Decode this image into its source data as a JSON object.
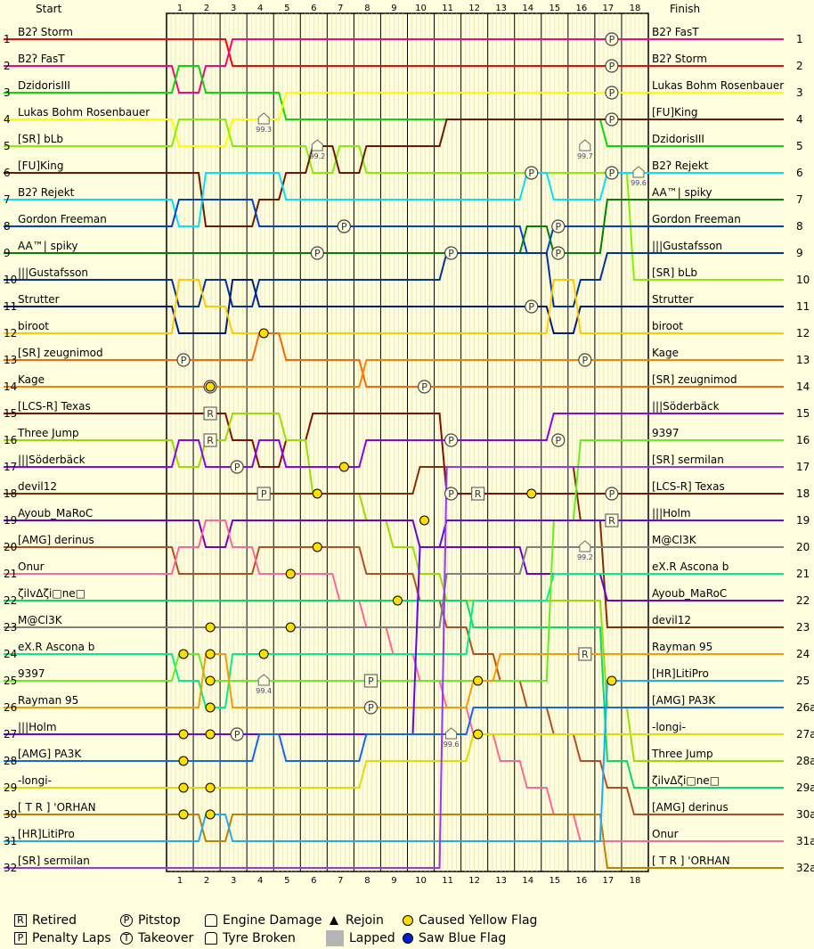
{
  "headers": {
    "start": "Start",
    "finish": "Finish"
  },
  "laps": [
    "1",
    "2",
    "3",
    "4",
    "5",
    "6",
    "7",
    "8",
    "9",
    "10",
    "11",
    "12",
    "13",
    "14",
    "15",
    "16",
    "17",
    "18"
  ],
  "start_grid": [
    "B2ʔ Storm",
    "B2ʔ FasT",
    "DzidorisIII",
    "Lukas Bohm Rosenbauer",
    "[SR] bLb",
    "[FU]King",
    "B2ʔ Rejekt",
    "Gordon Freeman",
    "AA™| spiky",
    "|||Gustafsson",
    "Strutter",
    "biroot",
    "[SR] zeugnimod",
    "Kage",
    "[LCS-R] Texas",
    "Three Jump",
    "|||Söderbäck",
    "devil12",
    "Ayoub_MaRoC",
    "[AMG] derinus",
    "Onur",
    "ζilvΔζi□ne□",
    "M@Cl3K",
    "eX.R Ascona b",
    "9397",
    "Rayman 95",
    "|||Holm",
    "[AMG] PA3K",
    "-longi-",
    "[ T R ] 'ORHAN",
    "[HR]LitiPro",
    "[SR] sermilan"
  ],
  "start_positions": [
    "1",
    "2",
    "3",
    "4",
    "5",
    "6",
    "7",
    "8",
    "9",
    "10",
    "11",
    "12",
    "13",
    "14",
    "15",
    "16",
    "17",
    "18",
    "19",
    "20",
    "21",
    "22",
    "23",
    "24",
    "25",
    "26",
    "27",
    "28",
    "29",
    "30",
    "31",
    "32"
  ],
  "finish_order": [
    "B2ʔ FasT",
    "B2ʔ Storm",
    "Lukas Bohm Rosenbauer",
    "[FU]King",
    "DzidorisIII",
    "B2ʔ Rejekt",
    "AA™| spiky",
    "Gordon Freeman",
    "|||Gustafsson",
    "[SR] bLb",
    "Strutter",
    "biroot",
    "Kage",
    "[SR] zeugnimod",
    "|||Söderbäck",
    "9397",
    "[SR] sermilan",
    "[LCS-R] Texas",
    "|||Holm",
    "M@Cl3K",
    "eX.R Ascona b",
    "Ayoub_MaRoC",
    "devil12",
    "Rayman 95",
    "[HR]LitiPro",
    "[AMG] PA3K",
    "-longi-",
    "Three Jump",
    "ζilvΔζi□ne□",
    "[AMG] derinus",
    "Onur",
    "[ T R ] 'ORHAN"
  ],
  "finish_positions": [
    "1",
    "2",
    "3",
    "4",
    "5",
    "6",
    "7",
    "8",
    "9",
    "10",
    "11",
    "12",
    "13",
    "14",
    "15",
    "16",
    "17",
    "18",
    "19",
    "20",
    "21",
    "22",
    "23",
    "24",
    "25",
    "26a",
    "27a",
    "28a",
    "29a",
    "30a",
    "31a",
    "32a"
  ],
  "colors": [
    "#ff0000",
    "#ff0080",
    "#00dd00",
    "#ffff00",
    "#88ee00",
    "#6b1a00",
    "#00e0ff",
    "#0040d0",
    "#008000",
    "#003399",
    "#001a80",
    "#ffcc00",
    "#ff6600",
    "#ff8000",
    "#801000",
    "#99dd00",
    "#8800ff",
    "#803000",
    "#7000cc",
    "#b05020",
    "#ff6699",
    "#00e060",
    "#808080",
    "#00ee88",
    "#66ee22",
    "#ff9900",
    "#6600ff",
    "#1066ff",
    "#dddd00",
    "#c08000",
    "#20aaff",
    "#9933ff"
  ],
  "chart_data": {
    "type": "line",
    "title": "",
    "x": [
      "Start",
      "1",
      "2",
      "3",
      "4",
      "5",
      "6",
      "7",
      "8",
      "9",
      "10",
      "11",
      "12",
      "13",
      "14",
      "15",
      "16",
      "17",
      "18"
    ],
    "y_axis": "position (1 at top)",
    "series": [
      {
        "name": "B2ʔ Storm",
        "positions": [
          1,
          1,
          1,
          2,
          2,
          2,
          2,
          2,
          2,
          2,
          2,
          2,
          2,
          2,
          2,
          2,
          2,
          2,
          2
        ]
      },
      {
        "name": "B2ʔ FasT",
        "positions": [
          2,
          3,
          2,
          1,
          1,
          1,
          1,
          1,
          1,
          1,
          1,
          1,
          1,
          1,
          1,
          1,
          1,
          1,
          1
        ]
      },
      {
        "name": "DzidorisIII",
        "positions": [
          3,
          2,
          3,
          3,
          3,
          4,
          4,
          4,
          4,
          4,
          4,
          4,
          4,
          4,
          4,
          4,
          4,
          5,
          5
        ]
      },
      {
        "name": "Lukas Bohm Rosenbauer",
        "positions": [
          4,
          5,
          5,
          4,
          4,
          3,
          3,
          3,
          3,
          3,
          3,
          3,
          3,
          3,
          3,
          3,
          3,
          3,
          3
        ]
      },
      {
        "name": "[SR] bLb",
        "positions": [
          5,
          4,
          4,
          5,
          5,
          5,
          6,
          5,
          6,
          6,
          6,
          6,
          6,
          6,
          6,
          6,
          6,
          6,
          10
        ]
      },
      {
        "name": "[FU]King",
        "positions": [
          6,
          6,
          8,
          8,
          7,
          6,
          5,
          6,
          5,
          5,
          5,
          4,
          4,
          4,
          4,
          4,
          4,
          4,
          4
        ]
      },
      {
        "name": "B2ʔ Rejekt",
        "positions": [
          7,
          8,
          6,
          6,
          6,
          7,
          7,
          7,
          7,
          7,
          7,
          7,
          7,
          7,
          6,
          7,
          7,
          6,
          6
        ]
      },
      {
        "name": "Gordon Freeman",
        "positions": [
          8,
          7,
          7,
          7,
          8,
          8,
          8,
          8,
          8,
          8,
          8,
          8,
          8,
          8,
          9,
          8,
          8,
          8,
          8
        ]
      },
      {
        "name": "AA™| spiky",
        "positions": [
          9,
          9,
          9,
          9,
          9,
          9,
          9,
          9,
          9,
          9,
          9,
          9,
          9,
          9,
          8,
          9,
          9,
          7,
          7
        ]
      },
      {
        "name": "|||Gustafsson",
        "positions": [
          10,
          11,
          10,
          11,
          10,
          10,
          10,
          10,
          10,
          10,
          10,
          9,
          9,
          9,
          9,
          11,
          10,
          9,
          9
        ]
      },
      {
        "name": "Strutter",
        "positions": [
          11,
          12,
          12,
          10,
          11,
          11,
          11,
          11,
          11,
          11,
          11,
          11,
          11,
          11,
          11,
          12,
          11,
          11,
          11
        ]
      },
      {
        "name": "biroot",
        "positions": [
          12,
          10,
          11,
          12,
          12,
          12,
          12,
          12,
          12,
          12,
          12,
          12,
          12,
          12,
          12,
          10,
          12,
          12,
          12
        ]
      },
      {
        "name": "[SR] zeugnimod",
        "positions": [
          13,
          13,
          13,
          13,
          12,
          13,
          13,
          13,
          14,
          14,
          14,
          14,
          14,
          14,
          14,
          14,
          14,
          14,
          14
        ]
      },
      {
        "name": "Kage",
        "positions": [
          14,
          14,
          14,
          14,
          14,
          14,
          14,
          14,
          13,
          13,
          13,
          13,
          13,
          13,
          13,
          13,
          13,
          13,
          13
        ]
      },
      {
        "name": "[LCS-R] Texas",
        "positions": [
          15,
          15,
          15,
          16,
          17,
          16,
          15,
          15,
          15,
          15,
          15,
          18,
          18,
          18,
          18,
          18,
          18,
          18,
          18
        ]
      },
      {
        "name": "Three Jump",
        "positions": [
          16,
          17,
          16,
          15,
          15,
          16,
          18,
          18,
          19,
          20,
          21,
          22,
          22,
          22,
          22,
          22,
          22,
          26,
          28
        ]
      },
      {
        "name": "|||Söderbäck",
        "positions": [
          17,
          16,
          17,
          17,
          16,
          17,
          17,
          17,
          16,
          16,
          16,
          16,
          16,
          16,
          16,
          15,
          15,
          15,
          15
        ]
      },
      {
        "name": "devil12",
        "positions": [
          18,
          18,
          18,
          18,
          18,
          18,
          18,
          18,
          18,
          18,
          17,
          17,
          17,
          17,
          17,
          17,
          19,
          23,
          23
        ]
      },
      {
        "name": "Ayoub_MaRoC",
        "positions": [
          19,
          19,
          20,
          19,
          19,
          19,
          19,
          19,
          19,
          19,
          20,
          20,
          20,
          20,
          21,
          21,
          21,
          22,
          22
        ]
      },
      {
        "name": "[AMG] derinus",
        "positions": [
          20,
          21,
          21,
          21,
          20,
          20,
          20,
          20,
          21,
          21,
          22,
          23,
          24,
          25,
          26,
          27,
          28,
          29,
          30
        ]
      },
      {
        "name": "Onur",
        "positions": [
          21,
          20,
          19,
          20,
          21,
          21,
          21,
          22,
          23,
          24,
          25,
          26,
          27,
          28,
          29,
          30,
          31,
          31,
          31
        ]
      },
      {
        "name": "ζilvΔζi□ne□",
        "positions": [
          22,
          22,
          22,
          22,
          22,
          22,
          22,
          22,
          22,
          22,
          22,
          22,
          23,
          23,
          23,
          23,
          23,
          28,
          29
        ]
      },
      {
        "name": "M@Cl3K",
        "positions": [
          23,
          23,
          23,
          23,
          23,
          23,
          23,
          23,
          23,
          23,
          23,
          21,
          21,
          21,
          20,
          20,
          20,
          20,
          20
        ]
      },
      {
        "name": "eX.R Ascona b",
        "positions": [
          24,
          25,
          26,
          24,
          24,
          24,
          24,
          24,
          24,
          24,
          24,
          24,
          22,
          22,
          22,
          21,
          21,
          21,
          21
        ]
      },
      {
        "name": "9397",
        "positions": [
          25,
          24,
          25,
          25,
          25,
          25,
          25,
          25,
          25,
          25,
          25,
          25,
          25,
          25,
          25,
          19,
          16,
          16,
          16
        ]
      },
      {
        "name": "Rayman 95",
        "positions": [
          26,
          26,
          24,
          26,
          26,
          26,
          26,
          26,
          26,
          26,
          26,
          26,
          25,
          24,
          24,
          24,
          24,
          24,
          24
        ]
      },
      {
        "name": "|||Holm",
        "positions": [
          27,
          27,
          27,
          27,
          27,
          27,
          27,
          27,
          27,
          27,
          20,
          19,
          19,
          19,
          19,
          19,
          19,
          19,
          19
        ]
      },
      {
        "name": "[AMG] PA3K",
        "positions": [
          28,
          28,
          28,
          28,
          27,
          28,
          28,
          28,
          27,
          27,
          27,
          27,
          26,
          26,
          26,
          26,
          26,
          26,
          26
        ]
      },
      {
        "name": "-longi-",
        "positions": [
          29,
          29,
          29,
          29,
          29,
          29,
          29,
          29,
          28,
          28,
          28,
          28,
          27,
          27,
          27,
          27,
          27,
          27,
          27
        ]
      },
      {
        "name": "[ T R ] 'ORHAN",
        "positions": [
          30,
          30,
          31,
          30,
          30,
          30,
          30,
          30,
          30,
          30,
          30,
          30,
          30,
          30,
          30,
          30,
          30,
          32,
          32
        ]
      },
      {
        "name": "[HR]LitiPro",
        "positions": [
          31,
          31,
          30,
          31,
          31,
          31,
          31,
          31,
          31,
          31,
          31,
          31,
          31,
          31,
          31,
          31,
          31,
          25,
          25
        ]
      },
      {
        "name": "[SR] sermilan",
        "positions": [
          32,
          32,
          32,
          32,
          32,
          32,
          32,
          32,
          32,
          32,
          32,
          17,
          17,
          17,
          17,
          17,
          17,
          17,
          17
        ]
      }
    ],
    "events": [
      {
        "type": "pitstop",
        "lap": 17,
        "pos": 1
      },
      {
        "type": "pitstop",
        "lap": 17,
        "pos": 2
      },
      {
        "type": "pitstop",
        "lap": 17,
        "pos": 3
      },
      {
        "type": "pitstop",
        "lap": 17,
        "pos": 4
      },
      {
        "type": "pitstop",
        "lap": 14,
        "pos": 6
      },
      {
        "type": "pitstop",
        "lap": 17,
        "pos": 6
      },
      {
        "type": "pitstop",
        "lap": 7,
        "pos": 8
      },
      {
        "type": "pitstop",
        "lap": 6,
        "pos": 9
      },
      {
        "type": "pitstop",
        "lap": 11,
        "pos": 9
      },
      {
        "type": "pitstop",
        "lap": 15,
        "pos": 8
      },
      {
        "type": "pitstop",
        "lap": 15,
        "pos": 9
      },
      {
        "type": "pitstop",
        "lap": 14,
        "pos": 11
      },
      {
        "type": "pitstop",
        "lap": 1,
        "pos": 13
      },
      {
        "type": "pitstop",
        "lap": 16,
        "pos": 13
      },
      {
        "type": "pitstop",
        "lap": 10,
        "pos": 14
      },
      {
        "type": "pitstop",
        "lap": 2,
        "pos": 14
      },
      {
        "type": "pitstop",
        "lap": 11,
        "pos": 16
      },
      {
        "type": "pitstop",
        "lap": 15,
        "pos": 16
      },
      {
        "type": "pitstop",
        "lap": 3,
        "pos": 17
      },
      {
        "type": "pitstop",
        "lap": 11,
        "pos": 18
      },
      {
        "type": "pitstop",
        "lap": 17,
        "pos": 18
      },
      {
        "type": "pitstop",
        "lap": 3,
        "pos": 27
      },
      {
        "type": "pitstop",
        "lap": 8,
        "pos": 26
      },
      {
        "type": "pitstop",
        "lap": 7,
        "pos": 8
      },
      {
        "type": "penalty",
        "lap": 4,
        "pos": 18
      },
      {
        "type": "penalty",
        "lap": 8,
        "pos": 25
      },
      {
        "type": "retired",
        "lap": 2,
        "pos": 15
      },
      {
        "type": "retired",
        "lap": 2,
        "pos": 16
      },
      {
        "type": "retired",
        "lap": 12,
        "pos": 18
      },
      {
        "type": "retired",
        "lap": 17,
        "pos": 19
      },
      {
        "type": "retired",
        "lap": 16,
        "pos": 24
      },
      {
        "type": "engine",
        "lap": 4,
        "pos": 4,
        "label": "99.3"
      },
      {
        "type": "engine",
        "lap": 6,
        "pos": 5,
        "label": "99.2"
      },
      {
        "type": "engine",
        "lap": 16,
        "pos": 5,
        "label": "99.7"
      },
      {
        "type": "engine",
        "lap": 18,
        "pos": 6,
        "label": "99.6"
      },
      {
        "type": "engine",
        "lap": 16,
        "pos": 20,
        "label": "99.2"
      },
      {
        "type": "engine",
        "lap": 11,
        "pos": 27,
        "label": "99.6"
      },
      {
        "type": "engine",
        "lap": 4,
        "pos": 25,
        "label": "99.4"
      },
      {
        "type": "yellow",
        "lap": 4,
        "pos": 12
      },
      {
        "type": "yellow",
        "lap": 7,
        "pos": 17
      },
      {
        "type": "yellow",
        "lap": 2,
        "pos": 14
      },
      {
        "type": "yellow",
        "lap": 6,
        "pos": 18
      },
      {
        "type": "yellow",
        "lap": 14,
        "pos": 18
      },
      {
        "type": "yellow",
        "lap": 10,
        "pos": 19
      },
      {
        "type": "yellow",
        "lap": 6,
        "pos": 20
      },
      {
        "type": "yellow",
        "lap": 5,
        "pos": 21
      },
      {
        "type": "yellow",
        "lap": 9,
        "pos": 22
      },
      {
        "type": "yellow",
        "lap": 5,
        "pos": 23
      },
      {
        "type": "yellow",
        "lap": 2,
        "pos": 23
      },
      {
        "type": "yellow",
        "lap": 1,
        "pos": 24
      },
      {
        "type": "yellow",
        "lap": 2,
        "pos": 24
      },
      {
        "type": "yellow",
        "lap": 4,
        "pos": 24
      },
      {
        "type": "yellow",
        "lap": 2,
        "pos": 25
      },
      {
        "type": "yellow",
        "lap": 12,
        "pos": 25
      },
      {
        "type": "yellow",
        "lap": 17,
        "pos": 25
      },
      {
        "type": "yellow",
        "lap": 2,
        "pos": 26
      },
      {
        "type": "yellow",
        "lap": 2,
        "pos": 27
      },
      {
        "type": "yellow",
        "lap": 12,
        "pos": 27
      },
      {
        "type": "yellow",
        "lap": 1,
        "pos": 27
      },
      {
        "type": "yellow",
        "lap": 1,
        "pos": 28
      },
      {
        "type": "yellow",
        "lap": 1,
        "pos": 29
      },
      {
        "type": "yellow",
        "lap": 2,
        "pos": 29
      },
      {
        "type": "yellow",
        "lap": 1,
        "pos": 30
      },
      {
        "type": "yellow",
        "lap": 2,
        "pos": 30
      }
    ]
  },
  "legend": {
    "retired": "Retired",
    "penalty": "Penalty Laps",
    "pitstop": "Pitstop",
    "takeover": "Takeover",
    "engine": "Engine Damage",
    "tyre": "Tyre Broken",
    "rejoin": "Rejoin",
    "lapped": "Lapped",
    "yellow": "Caused Yellow Flag",
    "blue": "Saw Blue Flag",
    "sym_r": "R",
    "sym_p": "P",
    "sym_t": "T"
  }
}
